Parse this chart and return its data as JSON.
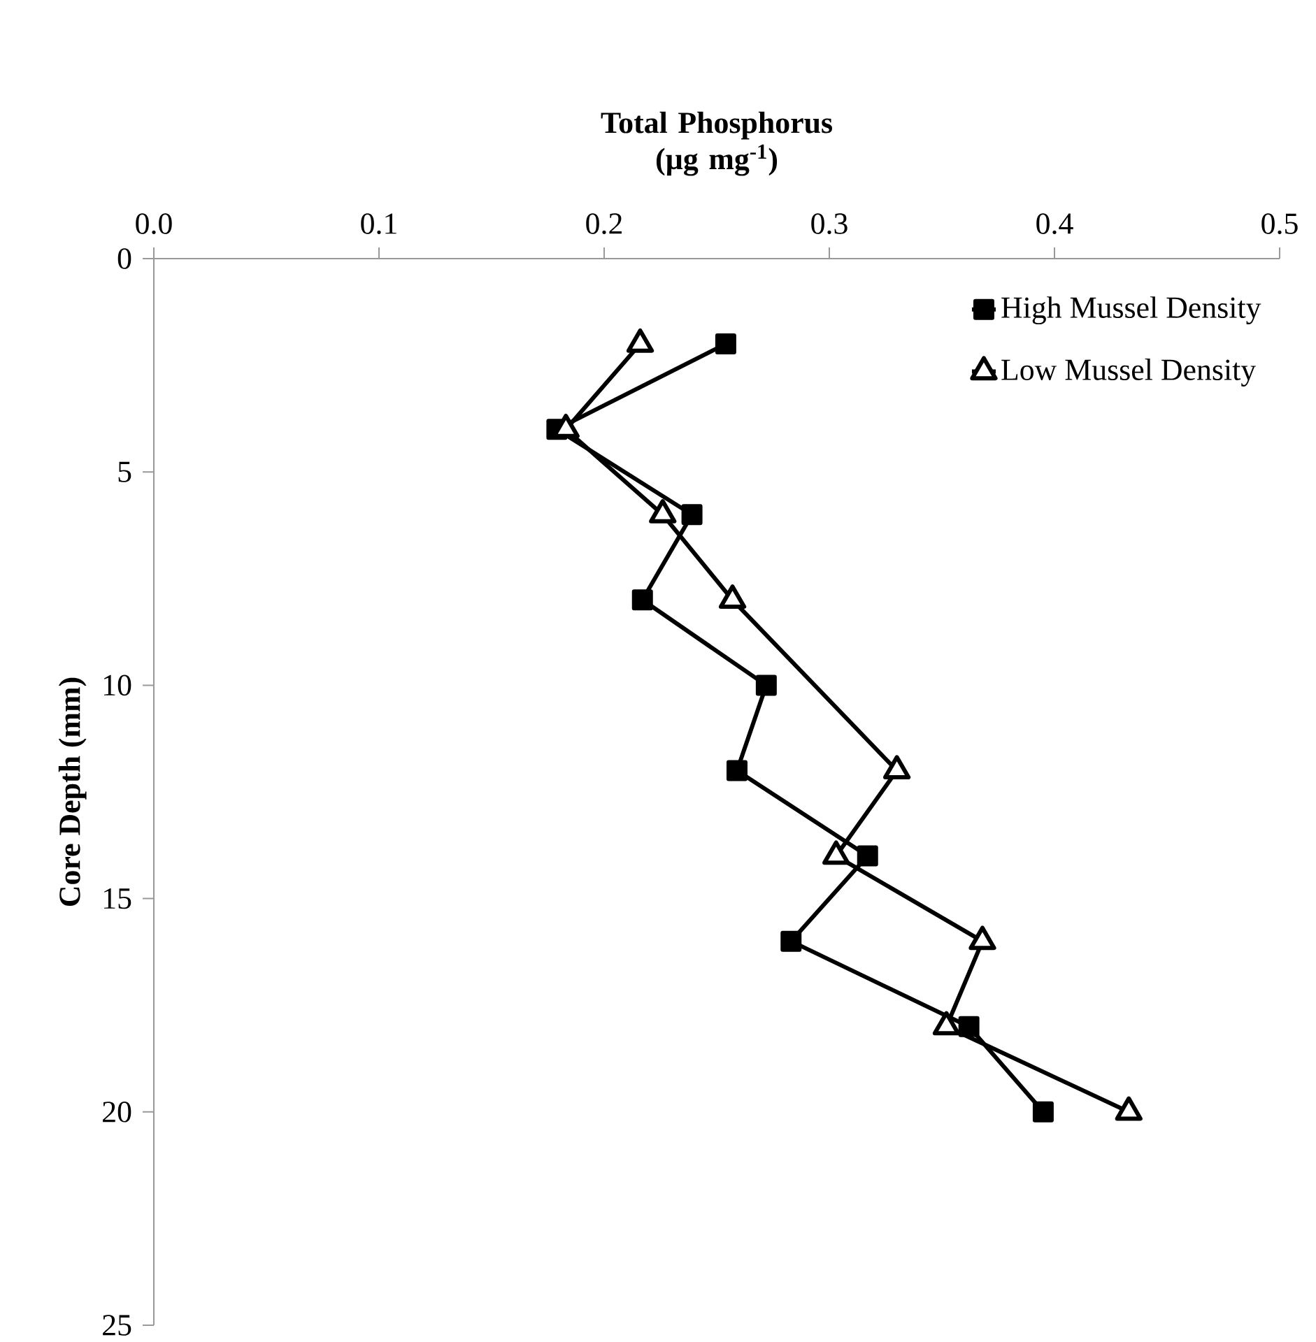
{
  "chart_data": {
    "type": "line",
    "xlabel": "Total Phosphorus (µg mg$^{-1}$)",
    "ylabel": "Core Depth (mm)",
    "xlim": [
      0,
      0.5
    ],
    "xticks": [
      {
        "value": 0,
        "label": "0.0"
      },
      0.1,
      0.2,
      0.3,
      0.4,
      0.5
    ],
    "ylim": [
      25,
      0
    ],
    "yticks": [
      0,
      5,
      10,
      15,
      20,
      25
    ],
    "grid": false,
    "legend": "top right",
    "line_style": "solid",
    "series": [
      {
        "name": "High Mussel Density",
        "color": "#000000",
        "marker": "square",
        "x": [
          0.254,
          0.179,
          0.239,
          0.217,
          0.272,
          0.259,
          0.317,
          0.283,
          0.362,
          0.395
        ],
        "values": [
          2,
          4,
          6,
          8,
          10,
          12,
          14,
          16,
          18,
          20
        ]
      },
      {
        "name": "Low Mussel Density",
        "color": "#000000",
        "marker": "triangle",
        "x": [
          0.216,
          0.183,
          0.226,
          0.257,
          0.33,
          0.303,
          0.368,
          0.352,
          0.433
        ],
        "values": [
          2,
          4,
          6,
          8,
          12,
          14,
          16,
          18,
          20
        ]
      }
    ]
  }
}
